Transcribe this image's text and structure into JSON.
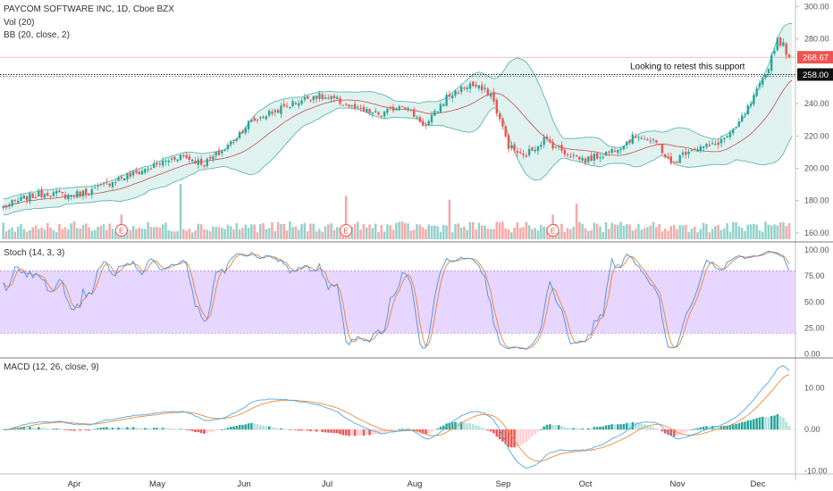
{
  "header": {
    "title": "PAYCOM SOFTWARE INC, 1D, Cboe BZX",
    "volume_label": "Vol (20)",
    "bb_label": "BB (20, close, 2)",
    "stoch_label": "Stoch (14, 3, 3)",
    "macd_label": "MACD (12, 26, close, 9)"
  },
  "annotation": {
    "text": "Looking to retest this support"
  },
  "earnings_marker": "E",
  "colors": {
    "up": "#26a69a",
    "down": "#ef5350",
    "band_fill": "#e0f2ef",
    "band_line": "#5fb7ae",
    "basis": "#c0504d",
    "stoch_k": "#4a90e2",
    "stoch_d": "#e8823a",
    "stoch_band": "#e7d6ff",
    "macd_line": "#4fa8e8",
    "signal_line": "#ef8a3c",
    "last_price_tag": "#ef5350",
    "support_tag": "#111111"
  },
  "chart_data": [
    {
      "type": "candlestick",
      "title": "PAYCOM SOFTWARE INC, 1D, Cboe BZX",
      "x_labels": [
        "Apr",
        "May",
        "Jun",
        "Jul",
        "Aug",
        "Sep",
        "Oct",
        "Nov",
        "Dec"
      ],
      "y_ticks": [
        160,
        180,
        200,
        220,
        240,
        260,
        280,
        300
      ],
      "y_tick_labels": [
        "160.00",
        "180.00",
        "200.00",
        "220.00",
        "240.00",
        "260.00",
        "280.00",
        "300.00"
      ],
      "ylim": [
        155,
        303
      ],
      "last_price": 268.67,
      "last_price_label": "268.67",
      "support_level": 258.0,
      "support_label": "258.00",
      "close_anchors": [
        [
          0,
          176
        ],
        [
          8,
          182
        ],
        [
          15,
          185
        ],
        [
          22,
          183
        ],
        [
          30,
          186
        ],
        [
          38,
          193
        ],
        [
          45,
          197
        ],
        [
          53,
          203
        ],
        [
          60,
          208
        ],
        [
          68,
          203
        ],
        [
          75,
          212
        ],
        [
          83,
          228
        ],
        [
          90,
          234
        ],
        [
          98,
          240
        ],
        [
          105,
          245
        ],
        [
          113,
          242
        ],
        [
          120,
          236
        ],
        [
          128,
          233
        ],
        [
          135,
          240
        ],
        [
          143,
          226
        ],
        [
          150,
          244
        ],
        [
          158,
          252
        ],
        [
          165,
          246
        ],
        [
          171,
          214
        ],
        [
          176,
          207
        ],
        [
          183,
          218
        ],
        [
          190,
          210
        ],
        [
          197,
          205
        ],
        [
          205,
          210
        ],
        [
          215,
          221
        ],
        [
          222,
          214
        ],
        [
          226,
          202
        ],
        [
          232,
          212
        ],
        [
          240,
          214
        ],
        [
          247,
          222
        ],
        [
          253,
          240
        ],
        [
          258,
          258
        ],
        [
          262,
          280
        ],
        [
          264,
          276
        ],
        [
          266,
          268.67
        ]
      ],
      "earnings_days": [
        40,
        116,
        186
      ],
      "bollinger": {
        "period": 20,
        "stddev": 2
      },
      "volume": {
        "period": 20,
        "spike_days": {
          "60": 2.8,
          "116": 2.2,
          "151": 2.0,
          "194": 1.8
        }
      }
    },
    {
      "type": "line",
      "title": "Stoch (14, 3, 3)",
      "y_ticks": [
        0,
        25,
        50,
        75,
        100
      ],
      "y_tick_labels": [
        "0.00",
        "25.00",
        "50.00",
        "75.00",
        "100.00"
      ],
      "band": [
        20,
        80
      ],
      "ylim": [
        -3,
        107
      ],
      "series": [
        "%K",
        "%D"
      ]
    },
    {
      "type": "bar+line",
      "title": "MACD (12, 26, close, 9)",
      "y_ticks": [
        -10,
        0,
        10
      ],
      "y_tick_labels": [
        "-10.00",
        "0.00",
        "10.00"
      ],
      "ylim": [
        -10.5,
        17
      ],
      "series": [
        "MACD",
        "Signal",
        "Histogram"
      ]
    }
  ]
}
